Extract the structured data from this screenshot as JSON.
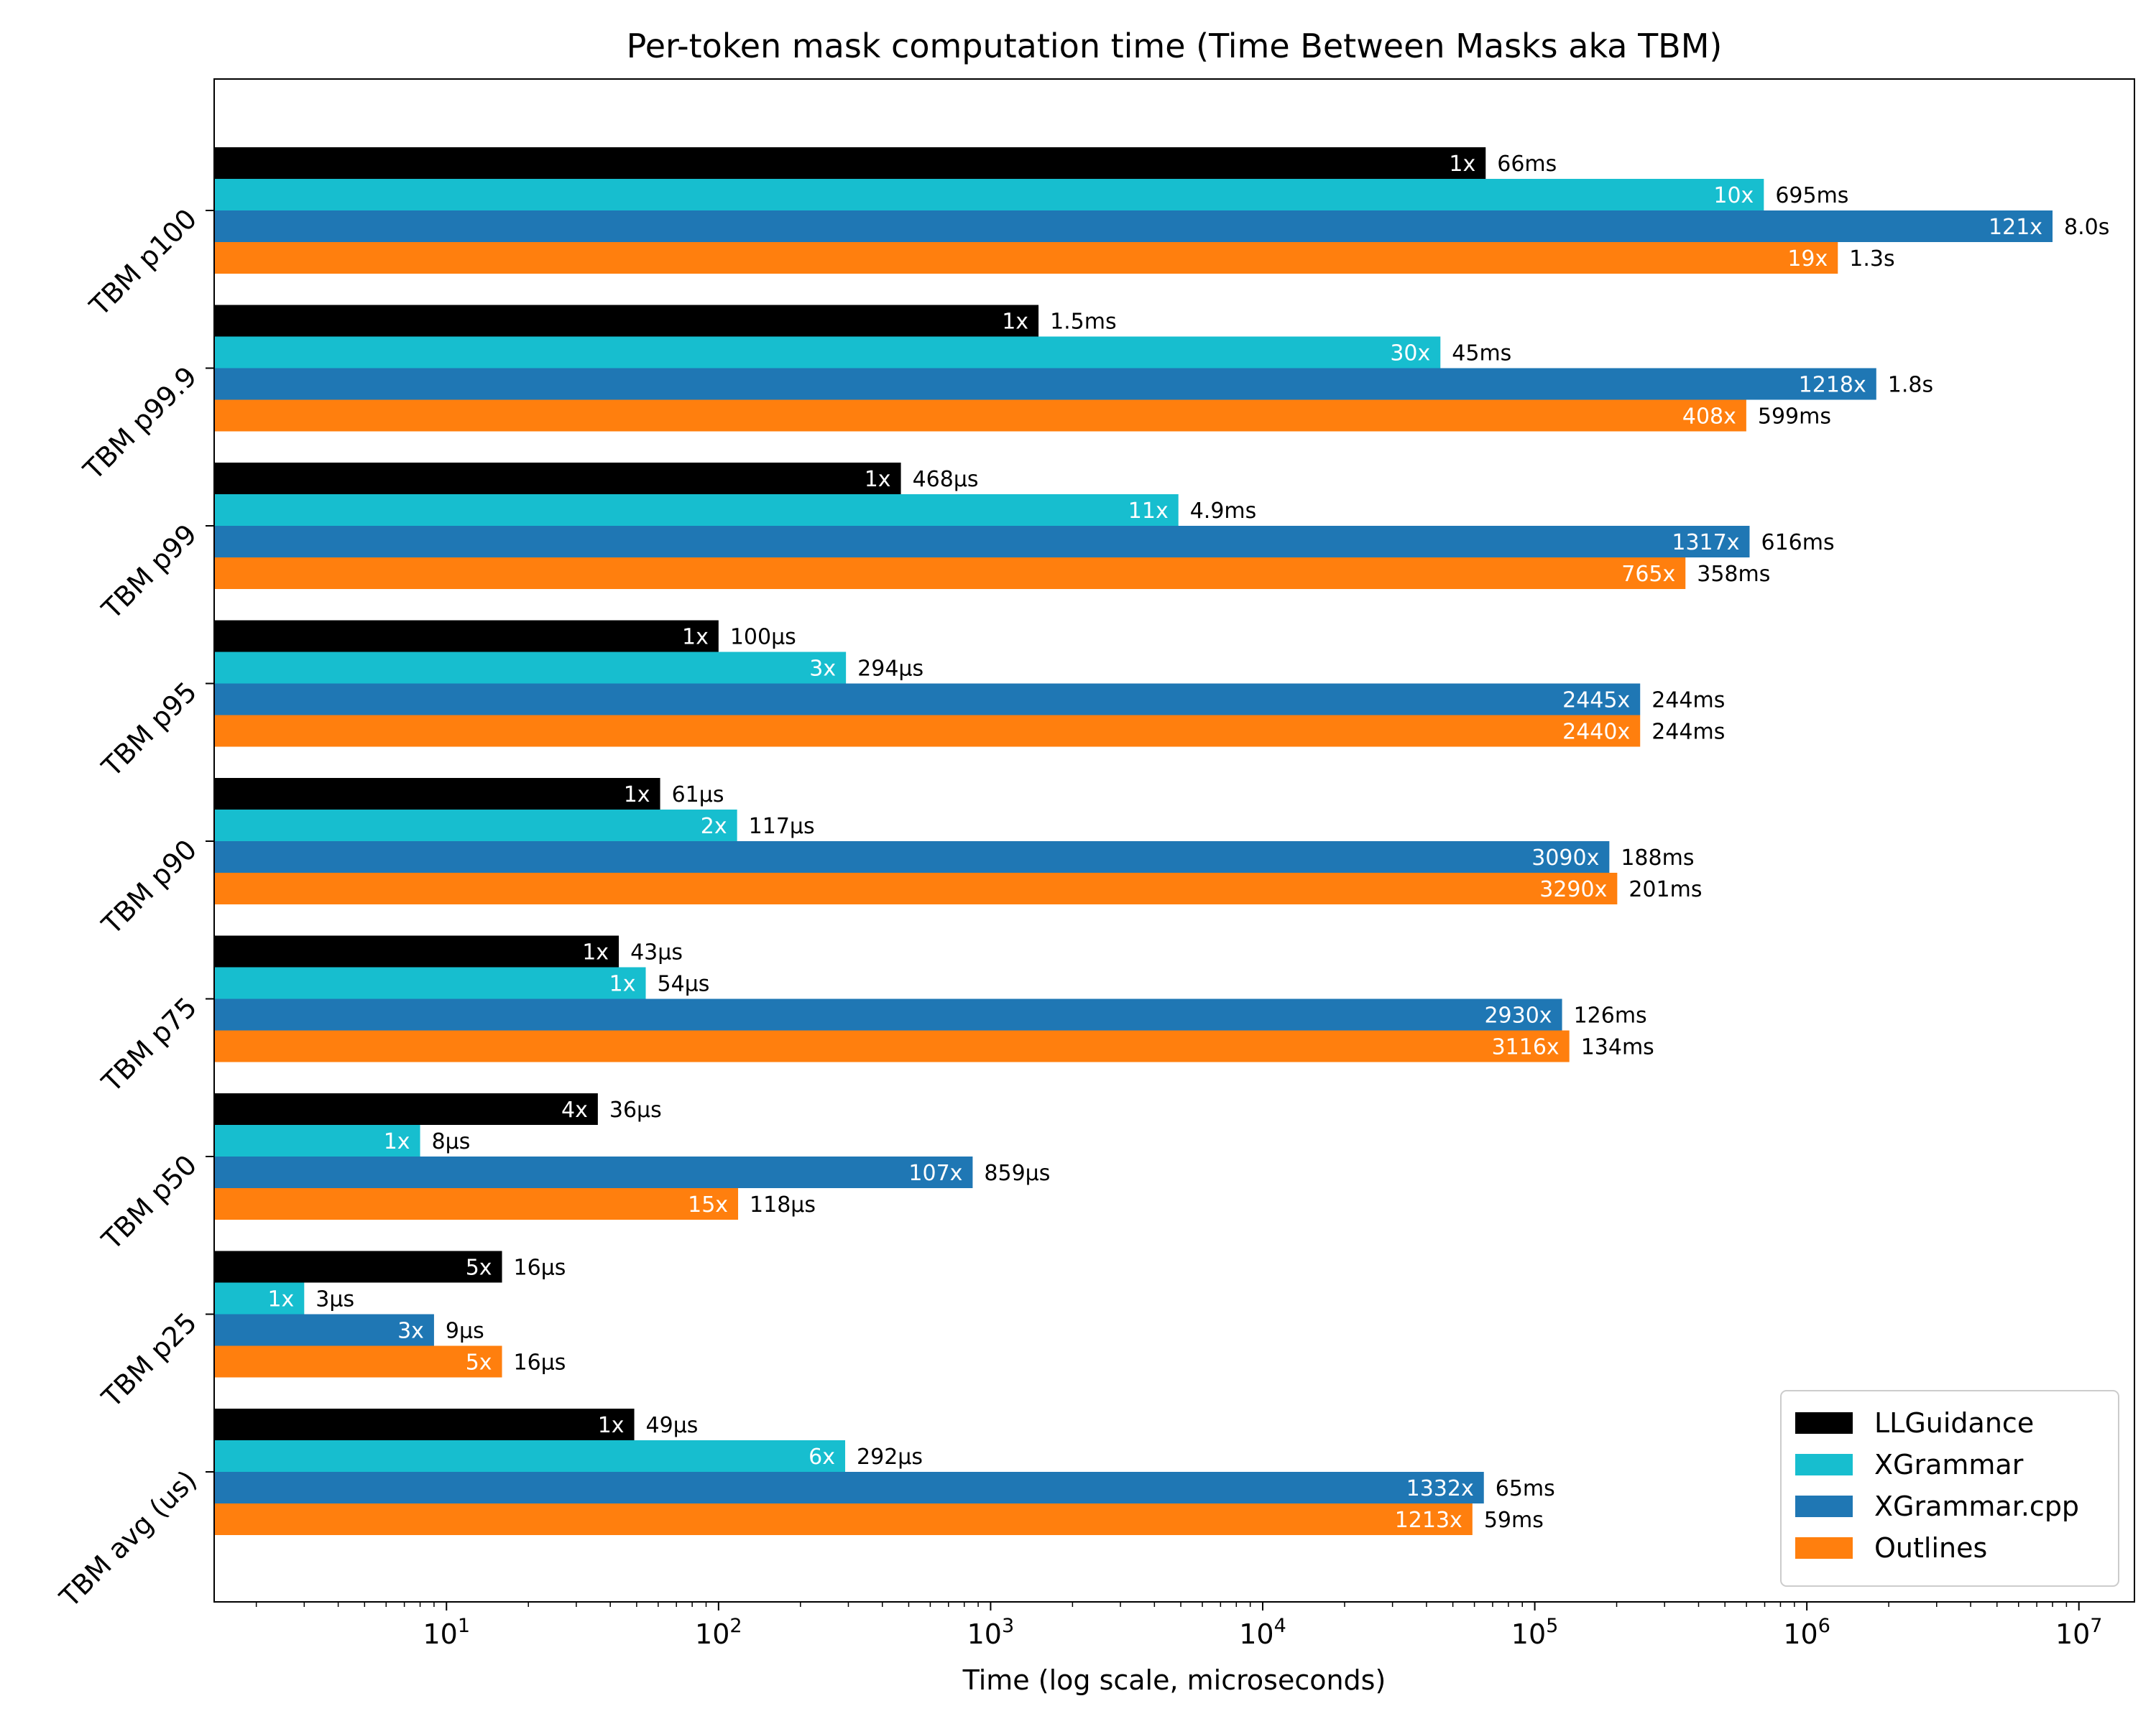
{
  "chart_data": {
    "type": "bar",
    "orientation": "horizontal",
    "title": "Per-token mask computation time (Time Between Masks aka TBM)",
    "xlabel": "Time (log scale, microseconds)",
    "ylabel": "",
    "x_scale": "log",
    "xlim": [
      1.4,
      16000000
    ],
    "x_ticks": [
      {
        "value": 10,
        "base": "10",
        "exp": "1"
      },
      {
        "value": 100,
        "base": "10",
        "exp": "2"
      },
      {
        "value": 1000,
        "base": "10",
        "exp": "3"
      },
      {
        "value": 10000,
        "base": "10",
        "exp": "4"
      },
      {
        "value": 100000,
        "base": "10",
        "exp": "5"
      },
      {
        "value": 1000000,
        "base": "10",
        "exp": "6"
      },
      {
        "value": 10000000,
        "base": "10",
        "exp": "7"
      }
    ],
    "grid": false,
    "legend_position": "bottom-right",
    "categories": [
      "TBM p100",
      "TBM p99.9",
      "TBM p99",
      "TBM p95",
      "TBM p90",
      "TBM p75",
      "TBM p50",
      "TBM p25",
      "TBM avg (us)"
    ],
    "series": [
      {
        "name": "LLGuidance",
        "color": "#000000",
        "values": [
          66000,
          1500,
          468,
          100,
          61,
          43,
          36,
          16,
          49
        ],
        "ratio_labels": [
          "1x",
          "1x",
          "1x",
          "1x",
          "1x",
          "1x",
          "4x",
          "5x",
          "1x"
        ],
        "value_labels": [
          "66ms",
          "1.5ms",
          "468µs",
          "100µs",
          "61µs",
          "43µs",
          "36µs",
          "16µs",
          "49µs"
        ]
      },
      {
        "name": "XGrammar",
        "color": "#17becf",
        "values": [
          695000,
          45000,
          4900,
          294,
          117,
          54,
          8,
          3,
          292
        ],
        "ratio_labels": [
          "10x",
          "30x",
          "11x",
          "3x",
          "2x",
          "1x",
          "1x",
          "1x",
          "6x"
        ],
        "value_labels": [
          "695ms",
          "45ms",
          "4.9ms",
          "294µs",
          "117µs",
          "54µs",
          "8µs",
          "3µs",
          "292µs"
        ]
      },
      {
        "name": "XGrammar.cpp",
        "color": "#1f77b4",
        "values": [
          8000000,
          1800000,
          616000,
          244000,
          188000,
          126000,
          859,
          9,
          65000
        ],
        "ratio_labels": [
          "121x",
          "1218x",
          "1317x",
          "2445x",
          "3090x",
          "2930x",
          "107x",
          "3x",
          "1332x"
        ],
        "value_labels": [
          "8.0s",
          "1.8s",
          "616ms",
          "244ms",
          "188ms",
          "126ms",
          "859µs",
          "9µs",
          "65ms"
        ]
      },
      {
        "name": "Outlines",
        "color": "#ff7f0e",
        "values": [
          1300000,
          599000,
          358000,
          244000,
          201000,
          134000,
          118,
          16,
          59000
        ],
        "ratio_labels": [
          "19x",
          "408x",
          "765x",
          "2440x",
          "3290x",
          "3116x",
          "15x",
          "5x",
          "1213x"
        ],
        "value_labels": [
          "1.3s",
          "599ms",
          "358ms",
          "244ms",
          "201ms",
          "134ms",
          "118µs",
          "16µs",
          "59ms"
        ]
      }
    ]
  }
}
